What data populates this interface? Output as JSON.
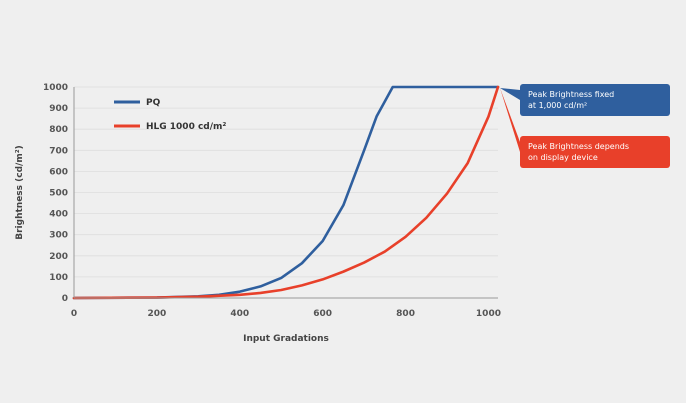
{
  "chart_data": {
    "type": "line",
    "xlabel": "Input Gradations",
    "ylabel": "Brightness (cd/m²)",
    "xlim": [
      0,
      1023
    ],
    "ylim": [
      0,
      1000
    ],
    "x_ticks": [
      "0",
      "200",
      "400",
      "600",
      "800",
      "1000"
    ],
    "y_ticks": [
      "0",
      "100",
      "200",
      "300",
      "400",
      "500",
      "600",
      "700",
      "800",
      "900",
      "1000"
    ],
    "grid": true,
    "legend_position": "top-left",
    "series": [
      {
        "name": "PQ",
        "color": "#2f5f9e",
        "x": [
          0,
          200,
          300,
          350,
          400,
          450,
          500,
          550,
          600,
          650,
          700,
          730,
          769,
          800,
          900,
          1023
        ],
        "y": [
          0,
          2,
          8,
          15,
          30,
          55,
          95,
          165,
          270,
          440,
          700,
          860,
          1000,
          1000,
          1000,
          1000
        ]
      },
      {
        "name": "HLG 1000 cd/m²",
        "color": "#e8402a",
        "x": [
          0,
          200,
          300,
          400,
          450,
          500,
          550,
          600,
          650,
          700,
          750,
          800,
          850,
          900,
          950,
          1000,
          1023
        ],
        "y": [
          0,
          2,
          6,
          15,
          24,
          38,
          60,
          88,
          125,
          168,
          220,
          290,
          380,
          495,
          640,
          860,
          1000
        ]
      }
    ],
    "annotations": [
      {
        "lines": [
          "Peak Brightness fixed",
          "at 1,000 cd/m²"
        ],
        "color": "#2f5f9e",
        "target_series": 0
      },
      {
        "lines": [
          "Peak Brightness depends",
          "on display device"
        ],
        "color": "#e8402a",
        "target_series": 1
      }
    ]
  }
}
